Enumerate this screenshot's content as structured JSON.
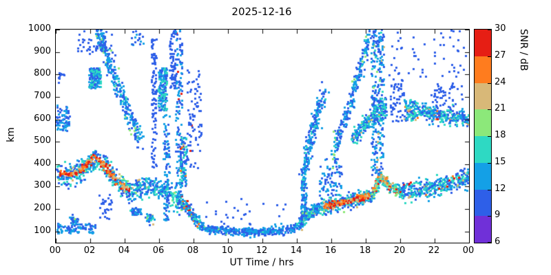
{
  "chart_data": {
    "type": "scatter",
    "title": "2025-12-16",
    "xlabel": "UT Time / hrs",
    "ylabel": "km",
    "colorbar_label": "SNR / dB",
    "xlim": [
      0,
      24
    ],
    "ylim": [
      50,
      1000
    ],
    "xtick_values": [
      0,
      2,
      4,
      6,
      8,
      10,
      12,
      14,
      16,
      18,
      20,
      22,
      24
    ],
    "xtick_labels": [
      "00",
      "02",
      "04",
      "06",
      "08",
      "10",
      "12",
      "14",
      "16",
      "18",
      "20",
      "22",
      "00"
    ],
    "ytick_values": [
      100,
      200,
      300,
      400,
      500,
      600,
      700,
      800,
      900,
      1000
    ],
    "grid": false,
    "background": "#ffffff",
    "border_color": "#000000",
    "point_size": 3,
    "seed": 42,
    "colorbar": {
      "min": 6,
      "max": 30,
      "tick_values": [
        6,
        9,
        12,
        15,
        18,
        21,
        24,
        27,
        30
      ],
      "colors": [
        "#7030d8",
        "#2e5fe8",
        "#14a0e6",
        "#2ed9c3",
        "#8ce87a",
        "#d8b878",
        "#ff7c1e",
        "#e61e14"
      ]
    },
    "traces": [
      {
        "path": [
          [
            0,
            365
          ],
          [
            0.5,
            355
          ],
          [
            1.0,
            350
          ],
          [
            1.5,
            378
          ],
          [
            2.0,
            415
          ],
          [
            2.35,
            430
          ],
          [
            2.7,
            408
          ],
          [
            3.1,
            370
          ],
          [
            3.5,
            330
          ],
          [
            4.0,
            300
          ],
          [
            4.35,
            285
          ],
          [
            4.7,
            292
          ],
          [
            5.0,
            300
          ],
          [
            5.6,
            298
          ],
          [
            6.1,
            288
          ],
          [
            6.5,
            272
          ],
          [
            7.0,
            248
          ],
          [
            7.3,
            235
          ]
        ],
        "n": 700,
        "sy": 24,
        "sx": 0.06,
        "snr": [
          9,
          18
        ],
        "hot": {
          "f": 0.06,
          "r": [
            18,
            24
          ]
        }
      },
      {
        "path": [
          [
            0.2,
            362
          ],
          [
            0.8,
            352
          ],
          [
            1.5,
            378
          ],
          [
            2.0,
            418
          ],
          [
            2.35,
            428
          ],
          [
            2.7,
            405
          ],
          [
            3.1,
            368
          ],
          [
            3.5,
            328
          ],
          [
            4.0,
            298
          ],
          [
            4.3,
            286
          ]
        ],
        "n": 180,
        "sy": 8,
        "sx": 0.05,
        "snr": [
          21,
          30
        ]
      },
      {
        "path": [
          [
            7.3,
            232
          ],
          [
            7.6,
            205
          ],
          [
            7.9,
            175
          ],
          [
            8.15,
            150
          ],
          [
            8.4,
            135
          ]
        ],
        "n": 160,
        "sy": 14,
        "sx": 0.05,
        "snr": [
          9,
          18
        ],
        "hot": {
          "f": 0.12,
          "r": [
            24,
            30
          ]
        }
      },
      {
        "path": [
          [
            8.4,
            122
          ],
          [
            9.0,
            112
          ],
          [
            9.8,
            105
          ],
          [
            10.6,
            100
          ],
          [
            11.4,
            98
          ],
          [
            12.2,
            100
          ],
          [
            13.0,
            105
          ],
          [
            13.6,
            112
          ],
          [
            14.1,
            125
          ]
        ],
        "n": 380,
        "sy": 9,
        "sx": 0.07,
        "snr": [
          9,
          15
        ],
        "hot": {
          "f": 0.04,
          "r": [
            15,
            21
          ]
        }
      },
      {
        "rect": [
          0.0,
          2.3,
          90,
          135
        ],
        "n": 90,
        "snr": [
          9,
          15
        ]
      },
      {
        "path": [
          [
            0.9,
            150
          ],
          [
            1.2,
            152
          ]
        ],
        "n": 40,
        "sy": 8,
        "sx": 0.1,
        "snr": [
          9,
          15
        ],
        "hot": {
          "f": 0.1,
          "r": [
            15,
            21
          ]
        }
      },
      {
        "rect": [
          4.4,
          5.0,
          175,
          205
        ],
        "n": 45,
        "snr": [
          9,
          15
        ]
      },
      {
        "path": [
          [
            5.3,
            162
          ],
          [
            5.6,
            158
          ]
        ],
        "n": 45,
        "sy": 10,
        "sx": 0.08,
        "snr": [
          9,
          18
        ],
        "hot": {
          "f": 0.1,
          "r": [
            18,
            24
          ]
        }
      },
      {
        "path": [
          [
            2.3,
            1000
          ],
          [
            2.6,
            950
          ],
          [
            2.9,
            885
          ],
          [
            3.2,
            825
          ],
          [
            3.5,
            760
          ],
          [
            3.8,
            705
          ],
          [
            4.1,
            650
          ],
          [
            4.4,
            595
          ],
          [
            4.7,
            545
          ],
          [
            5.0,
            505
          ]
        ],
        "n": 320,
        "sy": 28,
        "sx": 0.07,
        "snr": [
          9,
          15
        ],
        "hot": {
          "f": 0.12,
          "r": [
            15,
            21
          ]
        }
      },
      {
        "rect": [
          1.9,
          2.6,
          740,
          830
        ],
        "n": 150,
        "snr": [
          9,
          18
        ]
      },
      {
        "rect": [
          1.2,
          3.3,
          890,
          1000
        ],
        "n": 45,
        "snr": [
          9,
          12
        ]
      },
      {
        "rect": [
          0.0,
          0.8,
          545,
          665
        ],
        "n": 70,
        "snr": [
          9,
          15
        ]
      },
      {
        "rect": [
          0.05,
          0.5,
          760,
          820
        ],
        "n": 12,
        "snr": [
          9,
          12
        ]
      },
      {
        "rect": [
          5.55,
          5.85,
          380,
          960
        ],
        "n": 110,
        "snr": [
          9,
          12
        ]
      },
      {
        "rect": [
          5.95,
          6.45,
          640,
          830
        ],
        "n": 170,
        "snr": [
          9,
          18
        ]
      },
      {
        "rect": [
          6.25,
          6.6,
          150,
          620
        ],
        "n": 90,
        "snr": [
          9,
          15
        ]
      },
      {
        "rect": [
          6.6,
          6.95,
          740,
          1000
        ],
        "n": 70,
        "snr": [
          9,
          12
        ]
      },
      {
        "rect": [
          6.95,
          7.35,
          200,
          1000
        ],
        "n": 150,
        "snr": [
          9,
          15
        ],
        "hot": {
          "f": 0.05,
          "r": [
            24,
            30
          ]
        }
      },
      {
        "rect": [
          7.2,
          7.6,
          300,
          520
        ],
        "n": 90,
        "snr": [
          9,
          18
        ],
        "hot": {
          "f": 0.06,
          "r": [
            21,
            30
          ]
        }
      },
      {
        "rect": [
          7.6,
          8.45,
          380,
          820
        ],
        "n": 80,
        "snr": [
          9,
          12
        ],
        "hot": {
          "f": 0.04,
          "r": [
            24,
            30
          ]
        }
      },
      {
        "rect": [
          8.6,
          13.6,
          130,
          260
        ],
        "n": 25,
        "snr": [
          9,
          12
        ]
      },
      {
        "rect": [
          2.5,
          3.3,
          150,
          265
        ],
        "n": 30,
        "snr": [
          9,
          12
        ]
      },
      {
        "rect": [
          4.4,
          5.1,
          930,
          1000
        ],
        "n": 18,
        "snr": [
          9,
          15
        ]
      },
      {
        "path": [
          [
            14.15,
            140
          ],
          [
            14.5,
            168
          ],
          [
            14.9,
            192
          ],
          [
            15.4,
            208
          ],
          [
            16.0,
            220
          ],
          [
            16.8,
            232
          ],
          [
            17.6,
            248
          ],
          [
            18.2,
            262
          ],
          [
            18.45,
            272
          ]
        ],
        "n": 500,
        "sy": 16,
        "sx": 0.06,
        "snr": [
          9,
          18
        ],
        "hot": {
          "f": 0.08,
          "r": [
            18,
            24
          ]
        }
      },
      {
        "path": [
          [
            15.6,
            212
          ],
          [
            16.2,
            222
          ],
          [
            16.9,
            234
          ],
          [
            17.6,
            248
          ],
          [
            18.2,
            262
          ]
        ],
        "n": 130,
        "sy": 7,
        "sx": 0.05,
        "snr": [
          21,
          30
        ]
      },
      {
        "path": [
          [
            18.45,
            275
          ],
          [
            18.65,
            312
          ],
          [
            18.85,
            342
          ],
          [
            19.05,
            330
          ],
          [
            19.3,
            305
          ],
          [
            19.6,
            290
          ],
          [
            20.0,
            282
          ]
        ],
        "n": 220,
        "sy": 14,
        "sx": 0.05,
        "snr": [
          12,
          24
        ],
        "hot": {
          "f": 0.18,
          "r": [
            24,
            30
          ]
        }
      },
      {
        "path": [
          [
            20.0,
            280
          ],
          [
            20.5,
            276
          ],
          [
            21.0,
            284
          ],
          [
            21.5,
            294
          ],
          [
            22.0,
            300
          ],
          [
            22.5,
            308
          ],
          [
            23.0,
            318
          ],
          [
            23.5,
            330
          ],
          [
            24.0,
            345
          ]
        ],
        "n": 380,
        "sy": 20,
        "sx": 0.06,
        "snr": [
          9,
          18
        ],
        "hot": {
          "f": 0.07,
          "r": [
            21,
            30
          ]
        }
      },
      {
        "rect": [
          14.25,
          14.55,
          150,
          330
        ],
        "n": 80,
        "snr": [
          9,
          15
        ],
        "hot": {
          "f": 0.06,
          "r": [
            15,
            21
          ]
        }
      },
      {
        "path": [
          [
            14.3,
            330
          ],
          [
            14.55,
            430
          ],
          [
            14.8,
            520
          ],
          [
            15.05,
            595
          ],
          [
            15.3,
            660
          ],
          [
            15.6,
            720
          ]
        ],
        "n": 240,
        "sy": 32,
        "sx": 0.08,
        "snr": [
          9,
          15
        ],
        "hot": {
          "f": 0.08,
          "r": [
            15,
            18
          ]
        }
      },
      {
        "rect": [
          15.3,
          16.6,
          250,
          430
        ],
        "n": 80,
        "snr": [
          9,
          15
        ]
      },
      {
        "path": [
          [
            16.05,
            455
          ],
          [
            16.4,
            520
          ],
          [
            16.75,
            595
          ],
          [
            17.1,
            680
          ],
          [
            17.45,
            770
          ],
          [
            17.75,
            850
          ],
          [
            18.0,
            920
          ],
          [
            18.2,
            985
          ]
        ],
        "n": 230,
        "sy": 30,
        "sx": 0.07,
        "snr": [
          9,
          15
        ],
        "hot": {
          "f": 0.1,
          "r": [
            15,
            21
          ]
        }
      },
      {
        "path": [
          [
            17.25,
            520
          ],
          [
            17.7,
            555
          ],
          [
            18.15,
            590
          ],
          [
            18.6,
            618
          ]
        ],
        "n": 150,
        "sy": 18,
        "sx": 0.06,
        "snr": [
          9,
          18
        ],
        "hot": {
          "f": 0.06,
          "r": [
            18,
            24
          ]
        }
      },
      {
        "rect": [
          18.3,
          19.05,
          350,
          1000
        ],
        "n": 260,
        "snr": [
          9,
          15
        ],
        "hot": {
          "f": 0.07,
          "r": [
            15,
            24
          ]
        }
      },
      {
        "rect": [
          18.35,
          19.2,
          590,
          700
        ],
        "n": 90,
        "snr": [
          9,
          18
        ]
      },
      {
        "rect": [
          19.4,
          20.3,
          590,
          780
        ],
        "n": 55,
        "snr": [
          9,
          12
        ]
      },
      {
        "rect": [
          20.25,
          20.9,
          595,
          690
        ],
        "n": 85,
        "snr": [
          9,
          18
        ],
        "hot": {
          "f": 0.05,
          "r": [
            21,
            27
          ]
        }
      },
      {
        "path": [
          [
            21.0,
            648
          ],
          [
            21.5,
            632
          ],
          [
            22.0,
            622
          ],
          [
            22.5,
            615
          ],
          [
            23.0,
            610
          ],
          [
            23.5,
            605
          ],
          [
            24.0,
            600
          ]
        ],
        "n": 300,
        "sy": 16,
        "sx": 0.06,
        "snr": [
          9,
          18
        ],
        "hot": {
          "f": 0.06,
          "r": [
            21,
            30
          ]
        }
      },
      {
        "rect": [
          21.8,
          23.6,
          650,
          760
        ],
        "n": 50,
        "snr": [
          9,
          12
        ]
      },
      {
        "rect": [
          19.2,
          23.9,
          790,
          1000
        ],
        "n": 55,
        "snr": [
          9,
          12
        ]
      }
    ]
  }
}
